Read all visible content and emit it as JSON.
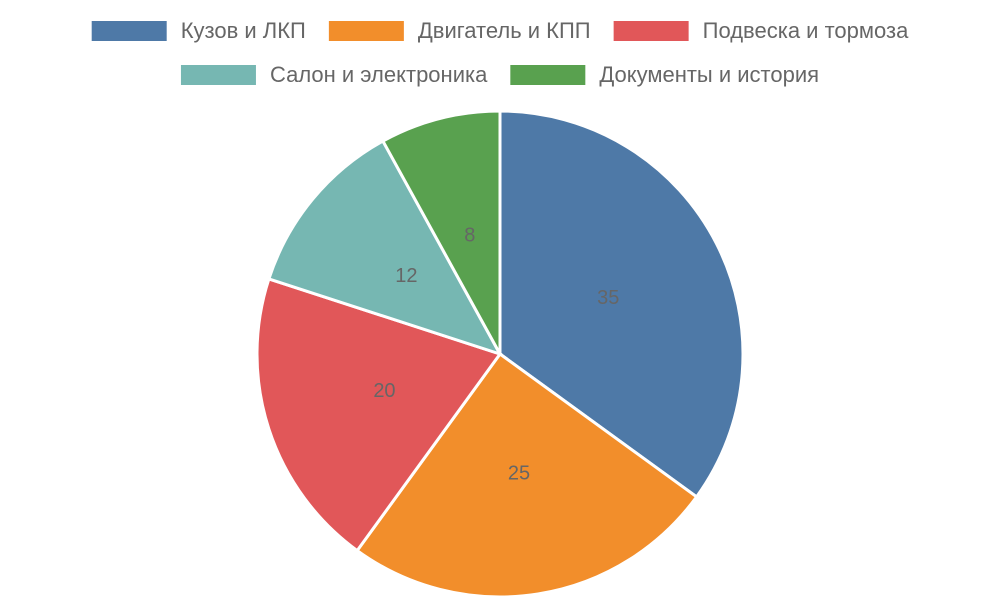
{
  "chart_data": {
    "type": "pie",
    "categories": [
      "Кузов и ЛКП",
      "Двигатель и КПП",
      "Подвеска и тормоза",
      "Салон и электроника",
      "Документы и история"
    ],
    "values": [
      35,
      25,
      20,
      12,
      8
    ],
    "colors": [
      "#4e79a7",
      "#f28e2b",
      "#e15759",
      "#76b7b2",
      "#59a14f"
    ],
    "legend": "top"
  }
}
